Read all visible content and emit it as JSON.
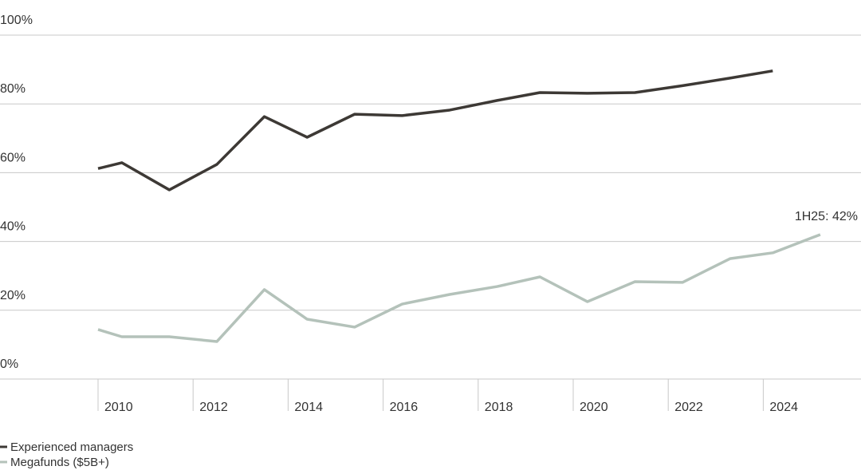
{
  "chart_data": {
    "type": "line",
    "x": [
      2010.0,
      2010.5,
      2011.5,
      2012.5,
      2013.5,
      2014.4,
      2015.4,
      2016.4,
      2017.4,
      2018.4,
      2019.3,
      2020.3,
      2021.3,
      2022.3,
      2023.3,
      2024.2,
      2025.2
    ],
    "series": [
      {
        "name": "Experienced managers",
        "color": "#3d3935",
        "values": [
          61.2,
          62.9,
          55,
          62.4,
          76.3,
          70.3,
          77,
          76.6,
          78.2,
          81,
          83.3,
          83.1,
          83.3,
          85.3,
          87.5,
          89.6,
          null
        ]
      },
      {
        "name": "Megafunds ($5B+)",
        "color": "#b4c2ba",
        "values": [
          14.4,
          12.3,
          12.3,
          10.9,
          26,
          17.4,
          15.1,
          21.8,
          24.6,
          26.9,
          29.7,
          22.5,
          28.3,
          28.1,
          35,
          36.7,
          42
        ]
      }
    ],
    "xlim": [
      2008,
      2026
    ],
    "xticks": [
      2010,
      2012,
      2014,
      2016,
      2018,
      2020,
      2022,
      2024
    ],
    "ylim": [
      0,
      100
    ],
    "yticks": [
      {
        "value": 0,
        "label": "0%"
      },
      {
        "value": 20,
        "label": "20%"
      },
      {
        "value": 40,
        "label": "40%"
      },
      {
        "value": 60,
        "label": "60%"
      },
      {
        "value": 80,
        "label": "80%"
      },
      {
        "value": 100,
        "label": "100%"
      }
    ],
    "annotation": "1H25: 42%",
    "grid": true
  }
}
